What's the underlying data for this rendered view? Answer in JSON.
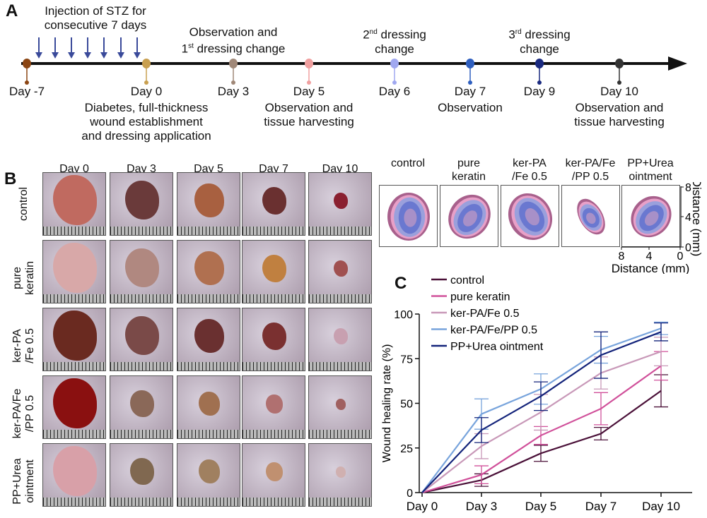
{
  "panel_a": {
    "letter": "A",
    "stz_line1": "Injection of STZ for",
    "stz_line2": "consecutive 7 days",
    "events": [
      {
        "day": "Day -7",
        "color": "#8b4513",
        "above": [],
        "below": []
      },
      {
        "day": "Day 0",
        "color": "#c9a050",
        "above": [],
        "below": [
          "Diabetes, full-thickness",
          "wound establishment",
          "and dressing application"
        ]
      },
      {
        "day": "Day 3",
        "color": "#a08878",
        "above": [
          "Observation and",
          "1st dressing change"
        ],
        "below": []
      },
      {
        "day": "Day 5",
        "color": "#f0a0a0",
        "above": [],
        "below": [
          "Observation and",
          "tissue harvesting"
        ]
      },
      {
        "day": "Day 6",
        "color": "#a0a8f0",
        "above": [
          "2nd dressing",
          "change"
        ],
        "below": []
      },
      {
        "day": "Day 7",
        "color": "#2f5fbf",
        "above": [],
        "below": [
          "Observation"
        ]
      },
      {
        "day": "Day 9",
        "color": "#1a2a80",
        "above": [
          "3rd dressing",
          "change"
        ],
        "below": []
      },
      {
        "day": "Day 10",
        "color": "#333333",
        "above": [],
        "below": [
          "Observation and",
          "tissue harvesting"
        ]
      }
    ],
    "arrow_color": "#3a4a9a"
  },
  "panel_b": {
    "letter": "B",
    "columns": [
      "Day 0",
      "Day 3",
      "Day 5",
      "Day 7",
      "Day 10"
    ],
    "rows": [
      {
        "label1": "control",
        "label2": ""
      },
      {
        "label1": "pure",
        "label2": "keratin"
      },
      {
        "label1": "ker-PA",
        "label2": "/Fe 0.5"
      },
      {
        "label1": "ker-PA/Fe",
        "label2": "/PP 0.5"
      },
      {
        "label1": "PP+Urea",
        "label2": "ointment"
      }
    ],
    "contour_titles": [
      {
        "l1": "",
        "l2": "control"
      },
      {
        "l1": "pure",
        "l2": "keratin"
      },
      {
        "l1": "ker-PA",
        "l2": "/Fe 0.5"
      },
      {
        "l1": "ker-PA/Fe",
        "l2": "/PP 0.5"
      },
      {
        "l1": "PP+Urea",
        "l2": "ointment"
      }
    ],
    "contour_colors": [
      "#a8608c",
      "#e8a0c8",
      "#9aa0dc",
      "#6a78d0",
      "#a890c8"
    ],
    "y_ticks": [
      "8",
      "4",
      "0"
    ],
    "x_ticks": [
      "8",
      "4",
      "0"
    ],
    "y_label": "Distance (mm)",
    "x_label": "Distance (mm)"
  },
  "chart_data": {
    "letter": "C",
    "type": "line",
    "categories": [
      "Day 0",
      "Day 3",
      "Day 5",
      "Day 7",
      "Day 10"
    ],
    "ylabel": "Wound healing rate (%)",
    "xlabel": "",
    "ylim": [
      0,
      100
    ],
    "yticks": [
      0,
      25,
      50,
      75,
      100
    ],
    "grid": false,
    "legend": "top-left",
    "series": [
      {
        "name": "control",
        "color": "#4a1038",
        "values": [
          0,
          7,
          22,
          33,
          57
        ],
        "errors": [
          0,
          3.5,
          4.5,
          3.5,
          9
        ]
      },
      {
        "name": "pure keratin",
        "color": "#d0509a",
        "values": [
          0,
          10,
          32,
          47,
          71
        ],
        "errors": [
          0,
          5,
          5,
          9,
          8
        ]
      },
      {
        "name": "ker-PA/Fe 0.5",
        "color": "#c898b8",
        "values": [
          0,
          26,
          45,
          67,
          79
        ],
        "errors": [
          0,
          7,
          10,
          9,
          8
        ]
      },
      {
        "name": "ker-PA/Fe/PP 0.5",
        "color": "#78a4dc",
        "values": [
          0,
          44,
          58,
          80,
          92
        ],
        "errors": [
          0,
          8.5,
          8.5,
          7.5,
          3.5
        ]
      },
      {
        "name": "PP+Urea ointment",
        "color": "#13237a",
        "values": [
          0,
          35,
          54,
          77,
          90
        ],
        "errors": [
          0,
          7,
          8,
          13,
          5
        ]
      }
    ]
  }
}
